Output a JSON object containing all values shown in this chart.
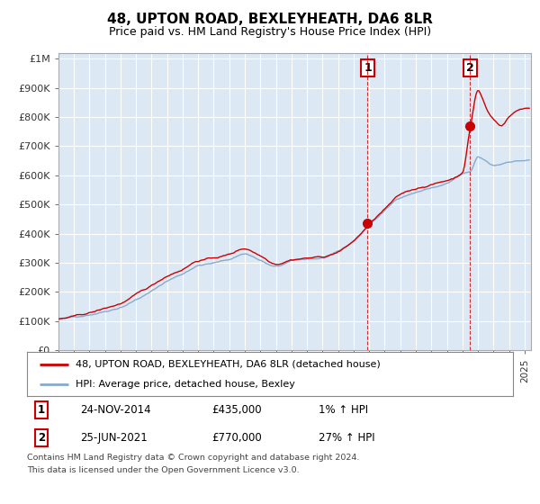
{
  "title": "48, UPTON ROAD, BEXLEYHEATH, DA6 8LR",
  "subtitle": "Price paid vs. HM Land Registry's House Price Index (HPI)",
  "ylabel_ticks": [
    "£0",
    "£100K",
    "£200K",
    "£300K",
    "£400K",
    "£500K",
    "£600K",
    "£700K",
    "£800K",
    "£900K",
    "£1M"
  ],
  "ytick_values": [
    0,
    100000,
    200000,
    300000,
    400000,
    500000,
    600000,
    700000,
    800000,
    900000,
    1000000
  ],
  "ylim": [
    0,
    1020000
  ],
  "xlim_start": 1995.0,
  "xlim_end": 2025.4,
  "background_color": "#ffffff",
  "plot_bg_color": "#dce9f5",
  "grid_color": "#ffffff",
  "sale1": {
    "year": 2014.9,
    "price": 435000,
    "label": "1",
    "date": "24-NOV-2014",
    "hpi_pct": "1%"
  },
  "sale2": {
    "year": 2021.5,
    "price": 770000,
    "label": "2",
    "date": "25-JUN-2021",
    "hpi_pct": "27%"
  },
  "legend_line1": "48, UPTON ROAD, BEXLEYHEATH, DA6 8LR (detached house)",
  "legend_line2": "HPI: Average price, detached house, Bexley",
  "footer1": "Contains HM Land Registry data © Crown copyright and database right 2024.",
  "footer2": "This data is licensed under the Open Government Licence v3.0.",
  "line_color_red": "#cc0000",
  "line_color_blue": "#88aacc",
  "title_fontsize": 11,
  "subtitle_fontsize": 9
}
